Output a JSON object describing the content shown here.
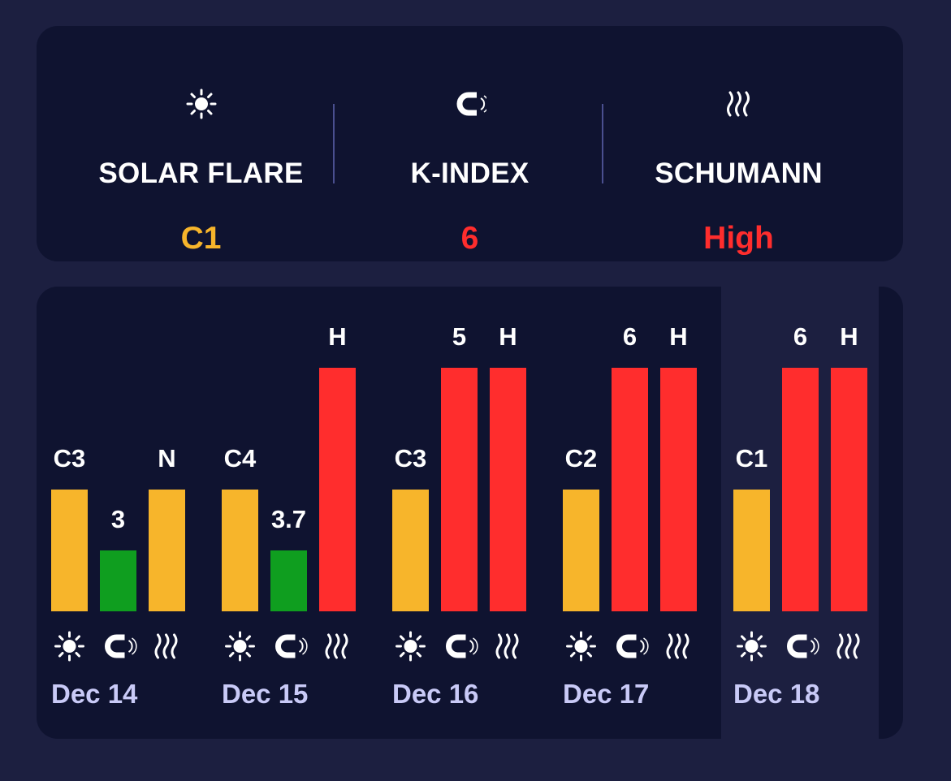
{
  "summary": {
    "solar": {
      "label": "SOLAR FLARE",
      "value": "C1",
      "icon": "sun-icon",
      "color": "#f7b52b"
    },
    "kindex": {
      "label": "K-INDEX",
      "value": "6",
      "icon": "magnet-icon",
      "color": "#ff2d2d"
    },
    "schumann": {
      "label": "SCHUMANN",
      "value": "High",
      "icon": "waves-icon",
      "color": "#ff2d2d"
    }
  },
  "colors": {
    "yellow": "#f7b52b",
    "red": "#ff2d2d",
    "green": "#0f9e1f",
    "date": "#c9caf7"
  },
  "chart_data": {
    "type": "bar",
    "title": "",
    "categories": [
      "Dec 14",
      "Dec 15",
      "Dec 16",
      "Dec 17",
      "Dec 18"
    ],
    "highlight_category": "Dec 18",
    "series": [
      {
        "name": "Solar Flare",
        "icon": "sun-icon",
        "labels": [
          "C3",
          "C4",
          "C3",
          "C2",
          "C1"
        ],
        "levels": [
          2,
          2,
          2,
          2,
          2
        ],
        "colors": [
          "yellow",
          "yellow",
          "yellow",
          "yellow",
          "yellow"
        ]
      },
      {
        "name": "K-Index",
        "icon": "magnet-icon",
        "labels": [
          "3",
          "3.7",
          "5",
          "6",
          "6"
        ],
        "levels": [
          1,
          1,
          4,
          4,
          4
        ],
        "colors": [
          "green",
          "green",
          "red",
          "red",
          "red"
        ]
      },
      {
        "name": "Schumann",
        "icon": "waves-icon",
        "labels": [
          "N",
          "H",
          "H",
          "H",
          "H"
        ],
        "levels": [
          2,
          4,
          4,
          4,
          4
        ],
        "colors": [
          "yellow",
          "red",
          "red",
          "red",
          "red"
        ]
      }
    ],
    "ylim": [
      0,
      4
    ],
    "xlabel": "",
    "ylabel": ""
  }
}
